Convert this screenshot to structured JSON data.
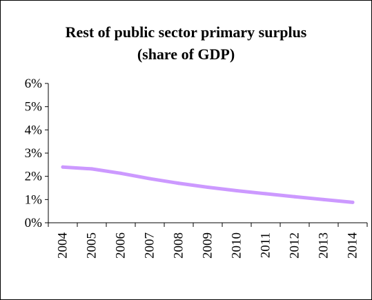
{
  "chart_data": {
    "type": "line",
    "title": "Rest of public sector primary surplus",
    "subtitle": "(share of GDP)",
    "xlabel": "",
    "ylabel": "",
    "categories": [
      "2004",
      "2005",
      "2006",
      "2007",
      "2008",
      "2009",
      "2010",
      "2011",
      "2012",
      "2013",
      "2014"
    ],
    "series": [
      {
        "values": [
          2.4,
          2.32,
          2.13,
          1.9,
          1.7,
          1.53,
          1.38,
          1.25,
          1.12,
          1.0,
          0.88
        ]
      }
    ],
    "ylim": [
      0,
      6
    ],
    "yticks": [
      0,
      1,
      2,
      3,
      4,
      5,
      6
    ],
    "ytick_labels": [
      "0%",
      "1%",
      "2%",
      "3%",
      "4%",
      "5%",
      "6%"
    ],
    "grid": false,
    "legend": "none",
    "colors": {
      "line": "#cc99ff",
      "axis": "#000000",
      "text": "#000000"
    }
  }
}
